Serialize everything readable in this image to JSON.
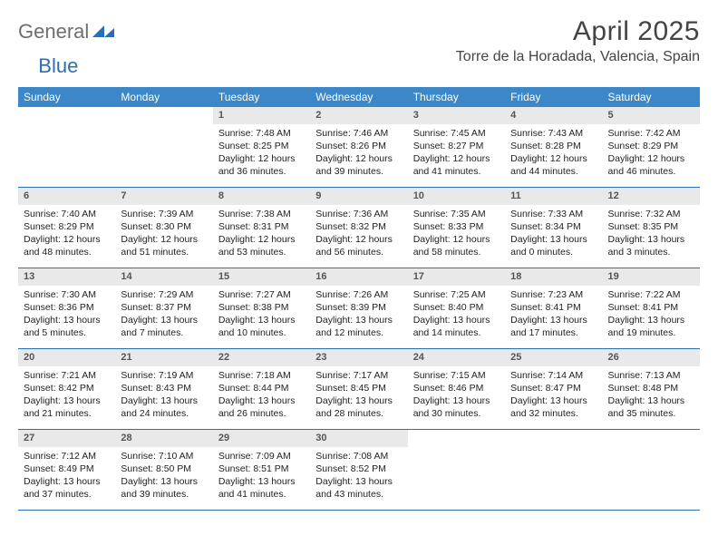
{
  "logo": {
    "general": "General",
    "blue": "Blue"
  },
  "title": "April 2025",
  "location": "Torre de la Horadada, Valencia, Spain",
  "colors": {
    "header_bg": "#3b87c8",
    "row_border": "#2a6fb5",
    "daynum_bg": "#e9e9e9",
    "text": "#222222",
    "title_color": "#444444"
  },
  "weekdays": [
    "Sunday",
    "Monday",
    "Tuesday",
    "Wednesday",
    "Thursday",
    "Friday",
    "Saturday"
  ],
  "weeks": [
    [
      {
        "num": "",
        "lines": [
          "",
          "",
          ""
        ]
      },
      {
        "num": "",
        "lines": [
          "",
          "",
          ""
        ]
      },
      {
        "num": "1",
        "lines": [
          "Sunrise: 7:48 AM",
          "Sunset: 8:25 PM",
          "Daylight: 12 hours and 36 minutes."
        ]
      },
      {
        "num": "2",
        "lines": [
          "Sunrise: 7:46 AM",
          "Sunset: 8:26 PM",
          "Daylight: 12 hours and 39 minutes."
        ]
      },
      {
        "num": "3",
        "lines": [
          "Sunrise: 7:45 AM",
          "Sunset: 8:27 PM",
          "Daylight: 12 hours and 41 minutes."
        ]
      },
      {
        "num": "4",
        "lines": [
          "Sunrise: 7:43 AM",
          "Sunset: 8:28 PM",
          "Daylight: 12 hours and 44 minutes."
        ]
      },
      {
        "num": "5",
        "lines": [
          "Sunrise: 7:42 AM",
          "Sunset: 8:29 PM",
          "Daylight: 12 hours and 46 minutes."
        ]
      }
    ],
    [
      {
        "num": "6",
        "lines": [
          "Sunrise: 7:40 AM",
          "Sunset: 8:29 PM",
          "Daylight: 12 hours and 48 minutes."
        ]
      },
      {
        "num": "7",
        "lines": [
          "Sunrise: 7:39 AM",
          "Sunset: 8:30 PM",
          "Daylight: 12 hours and 51 minutes."
        ]
      },
      {
        "num": "8",
        "lines": [
          "Sunrise: 7:38 AM",
          "Sunset: 8:31 PM",
          "Daylight: 12 hours and 53 minutes."
        ]
      },
      {
        "num": "9",
        "lines": [
          "Sunrise: 7:36 AM",
          "Sunset: 8:32 PM",
          "Daylight: 12 hours and 56 minutes."
        ]
      },
      {
        "num": "10",
        "lines": [
          "Sunrise: 7:35 AM",
          "Sunset: 8:33 PM",
          "Daylight: 12 hours and 58 minutes."
        ]
      },
      {
        "num": "11",
        "lines": [
          "Sunrise: 7:33 AM",
          "Sunset: 8:34 PM",
          "Daylight: 13 hours and 0 minutes."
        ]
      },
      {
        "num": "12",
        "lines": [
          "Sunrise: 7:32 AM",
          "Sunset: 8:35 PM",
          "Daylight: 13 hours and 3 minutes."
        ]
      }
    ],
    [
      {
        "num": "13",
        "lines": [
          "Sunrise: 7:30 AM",
          "Sunset: 8:36 PM",
          "Daylight: 13 hours and 5 minutes."
        ]
      },
      {
        "num": "14",
        "lines": [
          "Sunrise: 7:29 AM",
          "Sunset: 8:37 PM",
          "Daylight: 13 hours and 7 minutes."
        ]
      },
      {
        "num": "15",
        "lines": [
          "Sunrise: 7:27 AM",
          "Sunset: 8:38 PM",
          "Daylight: 13 hours and 10 minutes."
        ]
      },
      {
        "num": "16",
        "lines": [
          "Sunrise: 7:26 AM",
          "Sunset: 8:39 PM",
          "Daylight: 13 hours and 12 minutes."
        ]
      },
      {
        "num": "17",
        "lines": [
          "Sunrise: 7:25 AM",
          "Sunset: 8:40 PM",
          "Daylight: 13 hours and 14 minutes."
        ]
      },
      {
        "num": "18",
        "lines": [
          "Sunrise: 7:23 AM",
          "Sunset: 8:41 PM",
          "Daylight: 13 hours and 17 minutes."
        ]
      },
      {
        "num": "19",
        "lines": [
          "Sunrise: 7:22 AM",
          "Sunset: 8:41 PM",
          "Daylight: 13 hours and 19 minutes."
        ]
      }
    ],
    [
      {
        "num": "20",
        "lines": [
          "Sunrise: 7:21 AM",
          "Sunset: 8:42 PM",
          "Daylight: 13 hours and 21 minutes."
        ]
      },
      {
        "num": "21",
        "lines": [
          "Sunrise: 7:19 AM",
          "Sunset: 8:43 PM",
          "Daylight: 13 hours and 24 minutes."
        ]
      },
      {
        "num": "22",
        "lines": [
          "Sunrise: 7:18 AM",
          "Sunset: 8:44 PM",
          "Daylight: 13 hours and 26 minutes."
        ]
      },
      {
        "num": "23",
        "lines": [
          "Sunrise: 7:17 AM",
          "Sunset: 8:45 PM",
          "Daylight: 13 hours and 28 minutes."
        ]
      },
      {
        "num": "24",
        "lines": [
          "Sunrise: 7:15 AM",
          "Sunset: 8:46 PM",
          "Daylight: 13 hours and 30 minutes."
        ]
      },
      {
        "num": "25",
        "lines": [
          "Sunrise: 7:14 AM",
          "Sunset: 8:47 PM",
          "Daylight: 13 hours and 32 minutes."
        ]
      },
      {
        "num": "26",
        "lines": [
          "Sunrise: 7:13 AM",
          "Sunset: 8:48 PM",
          "Daylight: 13 hours and 35 minutes."
        ]
      }
    ],
    [
      {
        "num": "27",
        "lines": [
          "Sunrise: 7:12 AM",
          "Sunset: 8:49 PM",
          "Daylight: 13 hours and 37 minutes."
        ]
      },
      {
        "num": "28",
        "lines": [
          "Sunrise: 7:10 AM",
          "Sunset: 8:50 PM",
          "Daylight: 13 hours and 39 minutes."
        ]
      },
      {
        "num": "29",
        "lines": [
          "Sunrise: 7:09 AM",
          "Sunset: 8:51 PM",
          "Daylight: 13 hours and 41 minutes."
        ]
      },
      {
        "num": "30",
        "lines": [
          "Sunrise: 7:08 AM",
          "Sunset: 8:52 PM",
          "Daylight: 13 hours and 43 minutes."
        ]
      },
      {
        "num": "",
        "lines": [
          "",
          "",
          ""
        ]
      },
      {
        "num": "",
        "lines": [
          "",
          "",
          ""
        ]
      },
      {
        "num": "",
        "lines": [
          "",
          "",
          ""
        ]
      }
    ]
  ]
}
